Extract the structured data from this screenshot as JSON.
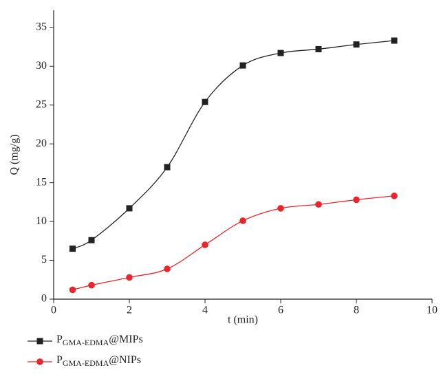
{
  "chart_data": {
    "type": "line",
    "x_label": "t (min)",
    "y_label": "Q (mg/g)",
    "x": [
      0.5,
      1,
      2,
      3,
      4,
      5,
      6,
      7,
      8,
      9
    ],
    "series": [
      {
        "name": "PGMA-EDMA@MIPs",
        "color": "#222222",
        "marker": "square",
        "values": [
          6.5,
          7.6,
          11.7,
          17.0,
          25.4,
          30.1,
          31.7,
          32.2,
          32.8,
          33.3
        ]
      },
      {
        "name": "PGMA-EDMA@NIPs",
        "color": "#e8262b",
        "marker": "circle",
        "values": [
          1.2,
          1.8,
          2.8,
          3.9,
          7.0,
          10.1,
          11.7,
          12.2,
          12.8,
          13.3
        ]
      }
    ],
    "xlim": [
      0,
      10
    ],
    "xticks": [
      0,
      2,
      4,
      6,
      8,
      10
    ],
    "ylim": [
      0,
      37.2
    ],
    "yticks": [
      0,
      5,
      10,
      15,
      20,
      25,
      30,
      35
    ]
  }
}
